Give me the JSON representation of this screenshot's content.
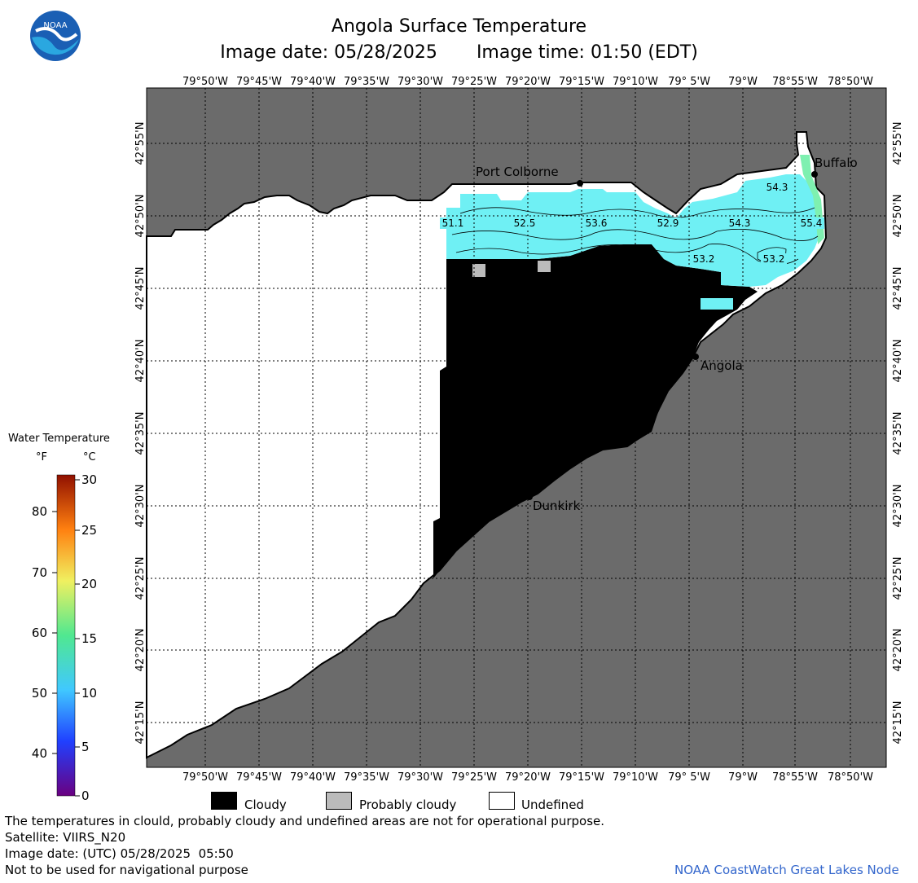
{
  "header": {
    "title": "Angola Surface Temperature",
    "image_date_label": "Image date:",
    "image_date": "05/28/2025",
    "image_time_label": "Image time:",
    "image_time": "01:50 (EDT)",
    "logo_text": "NOAA"
  },
  "map": {
    "lon_ticks": [
      "79°50'W",
      "79°45'W",
      "79°40'W",
      "79°35'W",
      "79°30'W",
      "79°25'W",
      "79°20'W",
      "79°15'W",
      "79°10'W",
      "79° 5'W",
      "79°W",
      "78°55'W",
      "78°50'W"
    ],
    "lat_ticks": [
      "42°55'N",
      "42°50'N",
      "42°45'N",
      "42°40'N",
      "42°35'N",
      "42°30'N",
      "42°25'N",
      "42°20'N",
      "42°15'N"
    ],
    "cities": [
      {
        "name": "Port Colborne"
      },
      {
        "name": "Buffalo"
      },
      {
        "name": "Angola"
      },
      {
        "name": "Dunkirk"
      }
    ],
    "contour_labels": [
      "51.1",
      "52.5",
      "53.6",
      "52.9",
      "54.3",
      "55.4",
      "54.3",
      "53.2",
      "53.2"
    ],
    "colors": {
      "land": "#6b6b6b",
      "undefined": "#ffffff",
      "cloudy": "#000000",
      "probably_cloudy": "#bbbbbb",
      "water": "#6ff0f4",
      "water_warm": "#7ef0b0"
    }
  },
  "legend": {
    "title": "Water Temperature",
    "unit_f": "°F",
    "unit_c": "°C",
    "f_ticks": [
      "80",
      "70",
      "60",
      "50",
      "40"
    ],
    "c_ticks": [
      "30",
      "25",
      "20",
      "15",
      "10",
      "5",
      "0"
    ]
  },
  "key": {
    "cloudy": "Cloudy",
    "probably_cloudy": "Probably cloudy",
    "undefined": "Undefined"
  },
  "footer": {
    "disclaimer": "The temperatures in clould, probably cloudy and undefined areas are not for operational purpose.",
    "satellite": "Satellite: VIIRS_N20",
    "utc_date": "Image date: (UTC) 05/28/2025  05:50",
    "nav_warning": "Not to be used for navigational purpose",
    "credit": "NOAA CoastWatch Great Lakes Node"
  }
}
